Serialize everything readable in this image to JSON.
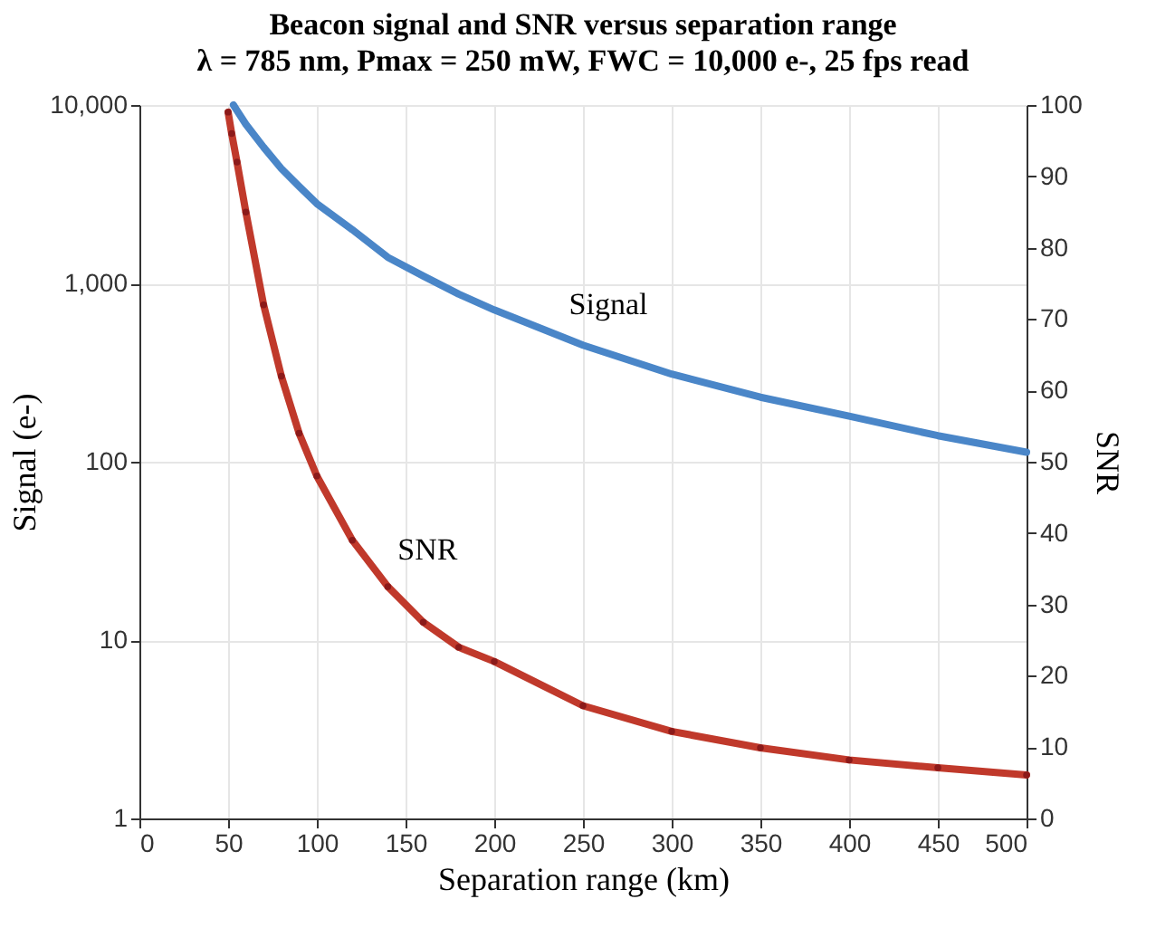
{
  "chart_data": {
    "type": "line",
    "title": "Beacon signal and SNR versus separation range",
    "subtitle": "λ = 785 nm, Pmax = 250 mW, FWC = 10,000 e-, 25 fps read",
    "xlabel": "Separation range (km)",
    "ylabel": "Signal (e-)",
    "y2label": "SNR",
    "log": "y",
    "grid": true,
    "xlim": [
      0,
      500
    ],
    "xticks": [
      0,
      50,
      100,
      150,
      200,
      250,
      300,
      350,
      400,
      450,
      500
    ],
    "ylim": [
      1,
      10000
    ],
    "yticks": [
      1,
      10,
      100,
      {
        "value": 1000,
        "label": "1,000"
      },
      {
        "value": 10000,
        "label": "10,000"
      }
    ],
    "y2lim": [
      0,
      100
    ],
    "y2ticks": [
      0,
      10,
      20,
      30,
      40,
      50,
      60,
      70,
      80,
      90,
      100
    ],
    "series": [
      {
        "name": "Signal",
        "color": "#4a86c8",
        "marker": "none",
        "line_style": "solid",
        "x": [
          53,
          55,
          60,
          70,
          80,
          90,
          100,
          120,
          140,
          160,
          180,
          200,
          250,
          300,
          350,
          400,
          450,
          500
        ],
        "values": [
          10000,
          9300,
          7800,
          5800,
          4400,
          3500,
          2800,
          2000,
          1400,
          1100,
          870,
          710,
          450,
          310,
          230,
          180,
          140,
          113
        ]
      },
      {
        "name": "SNR",
        "axis": "y2",
        "color": "#c0392b",
        "marker": "circle",
        "line_style": "solid",
        "x": [
          50,
          52,
          55,
          60,
          70,
          80,
          90,
          100,
          120,
          140,
          160,
          180,
          200,
          250,
          300,
          350,
          400,
          450,
          500
        ],
        "values": [
          99,
          96,
          92,
          85,
          72,
          62,
          54,
          48,
          39,
          32.5,
          27.5,
          24,
          22,
          15.8,
          12.2,
          9.9,
          8.2,
          7.1,
          6.1
        ]
      }
    ]
  }
}
